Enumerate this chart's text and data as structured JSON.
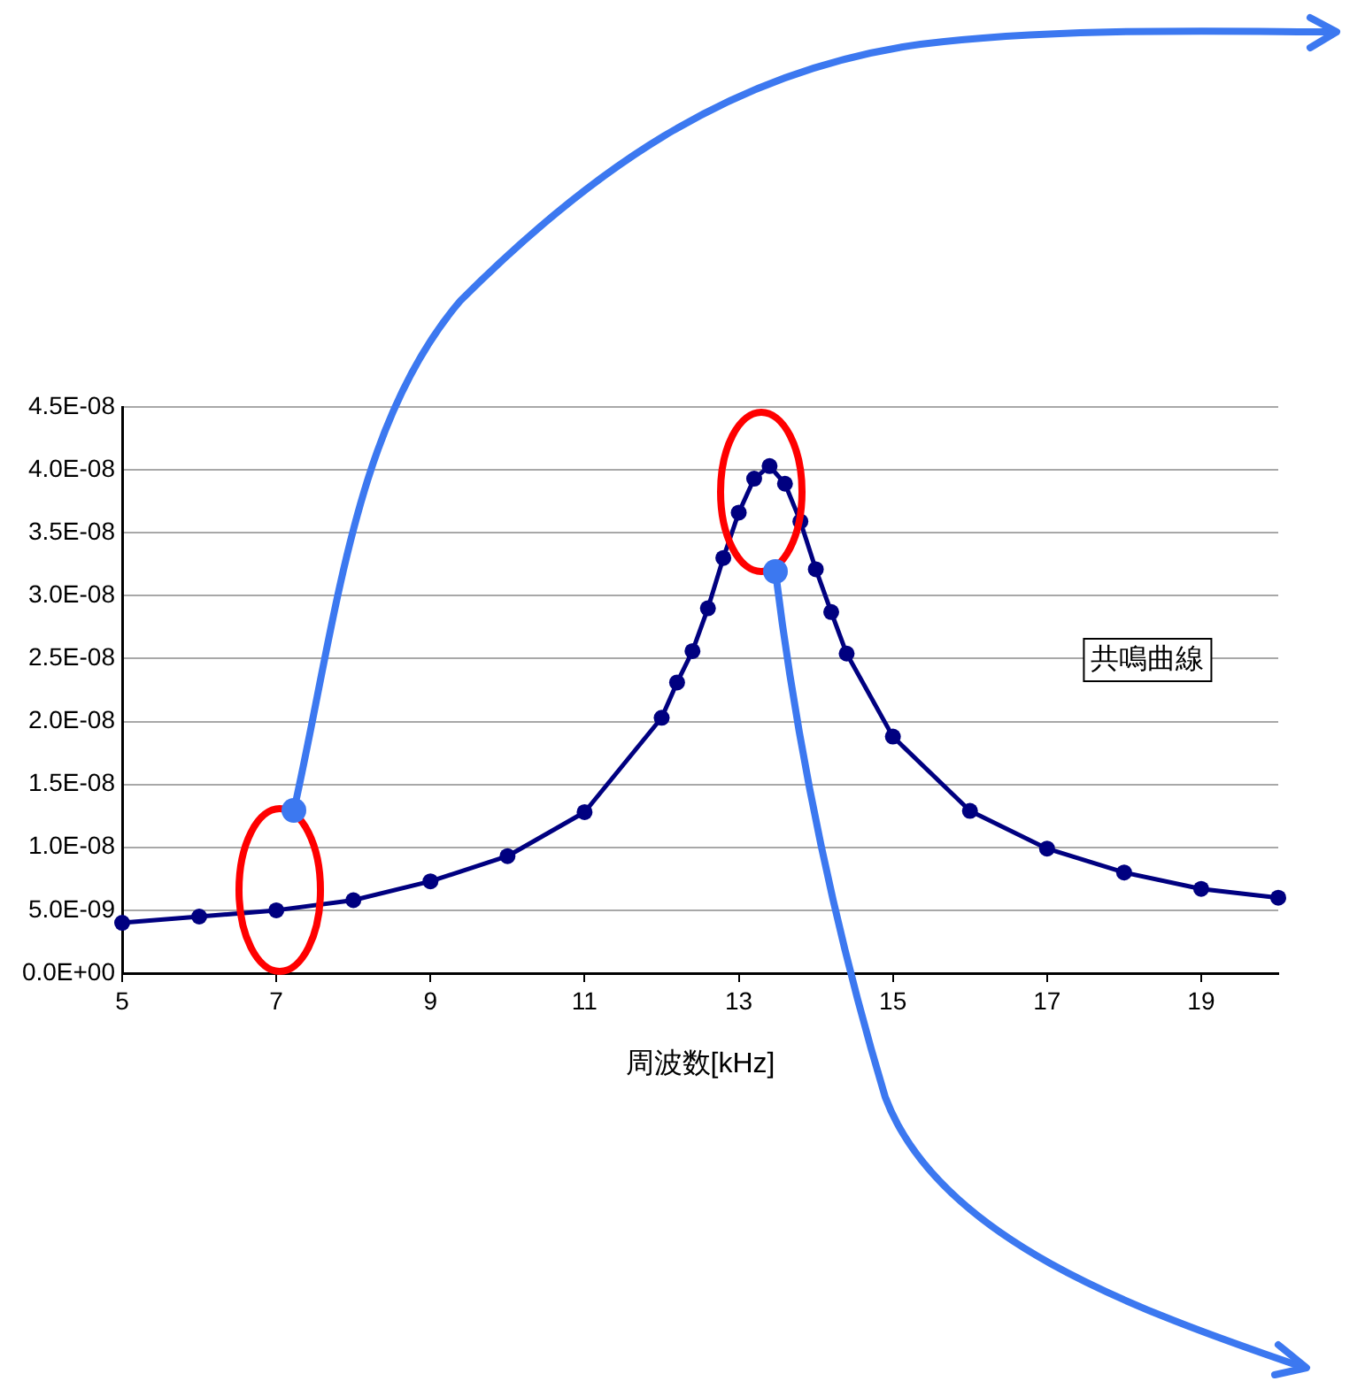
{
  "chart_data": {
    "type": "line",
    "xlabel": "周波数[kHz]",
    "x": [
      5,
      6,
      7,
      8,
      9,
      10,
      11,
      12,
      12.2,
      12.4,
      12.6,
      12.8,
      13,
      13.2,
      13.4,
      13.6,
      13.8,
      14,
      14.2,
      14.4,
      15,
      16,
      17,
      18,
      19,
      20
    ],
    "series": [
      {
        "color": "#000080",
        "values": [
          4e-09,
          4.5e-09,
          5e-09,
          5.8e-09,
          7.3e-09,
          9.3e-09,
          1.28e-08,
          2.03e-08,
          2.31e-08,
          2.56e-08,
          2.9e-08,
          3.3e-08,
          3.66e-08,
          3.93e-08,
          4.03e-08,
          3.89e-08,
          3.59e-08,
          3.21e-08,
          2.87e-08,
          2.54e-08,
          1.88e-08,
          1.29e-08,
          9.9e-09,
          8e-09,
          6.7e-09,
          6e-09
        ]
      }
    ],
    "xlim": [
      5,
      20
    ],
    "xticks": [
      5,
      7,
      9,
      11,
      13,
      15,
      17,
      19
    ],
    "ylim": [
      0,
      4.5e-08
    ],
    "yticks": [
      {
        "value": 0,
        "label": "0.0E+00"
      },
      {
        "value": 5e-09,
        "label": "5.0E-09"
      },
      {
        "value": 1e-08,
        "label": "1.0E-08"
      },
      {
        "value": 1.5e-08,
        "label": "1.5E-08"
      },
      {
        "value": 2e-08,
        "label": "2.0E-08"
      },
      {
        "value": 2.5e-08,
        "label": "2.5E-08"
      },
      {
        "value": 3e-08,
        "label": "3.0E-08"
      },
      {
        "value": 3.5e-08,
        "label": "3.5E-08"
      },
      {
        "value": 4e-08,
        "label": "4.0E-08"
      },
      {
        "value": 4.5e-08,
        "label": "4.5E-08"
      }
    ],
    "annotations": [
      "共鳴曲線"
    ],
    "grid": "y",
    "legend": false,
    "marker": "circle",
    "line_style": "solid"
  }
}
